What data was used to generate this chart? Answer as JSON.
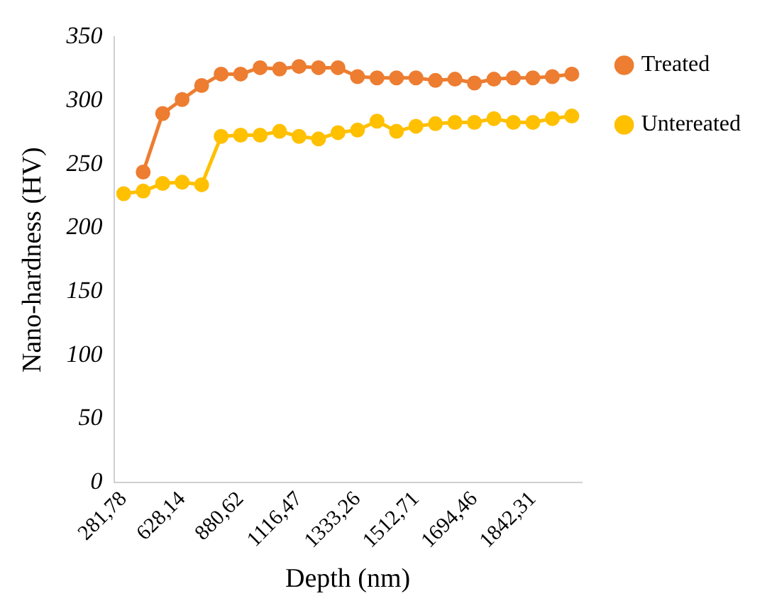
{
  "chart_data": {
    "type": "line",
    "xlabel": "Depth (nm)",
    "ylabel": "Nano-hardness (HV)",
    "categories": [
      "281,78",
      null,
      null,
      "628,14",
      null,
      null,
      "880,62",
      null,
      null,
      "1116,47",
      null,
      null,
      "1333,26",
      null,
      null,
      "1512,71",
      null,
      null,
      "1694,46",
      null,
      null,
      "1842,31",
      null,
      null
    ],
    "series": [
      {
        "name": "Treated",
        "color": "#ed7d31",
        "values": [
          null,
          244,
          290,
          301,
          312,
          321,
          321,
          326,
          325,
          327,
          326,
          326,
          319,
          318,
          318,
          318,
          316,
          317,
          314,
          317,
          318,
          318,
          319,
          321
        ]
      },
      {
        "name": "Untereated",
        "color": "#ffc000",
        "values": [
          227,
          229,
          235,
          236,
          234,
          272,
          273,
          273,
          276,
          272,
          270,
          275,
          277,
          284,
          276,
          280,
          282,
          283,
          283,
          286,
          283,
          283,
          286,
          288
        ]
      }
    ],
    "ylim": [
      0,
      350
    ],
    "yticks": [
      0,
      50,
      100,
      150,
      200,
      250,
      300,
      350
    ],
    "grid": false,
    "legend": "top right",
    "marker": "circle",
    "line_style": "solid"
  }
}
